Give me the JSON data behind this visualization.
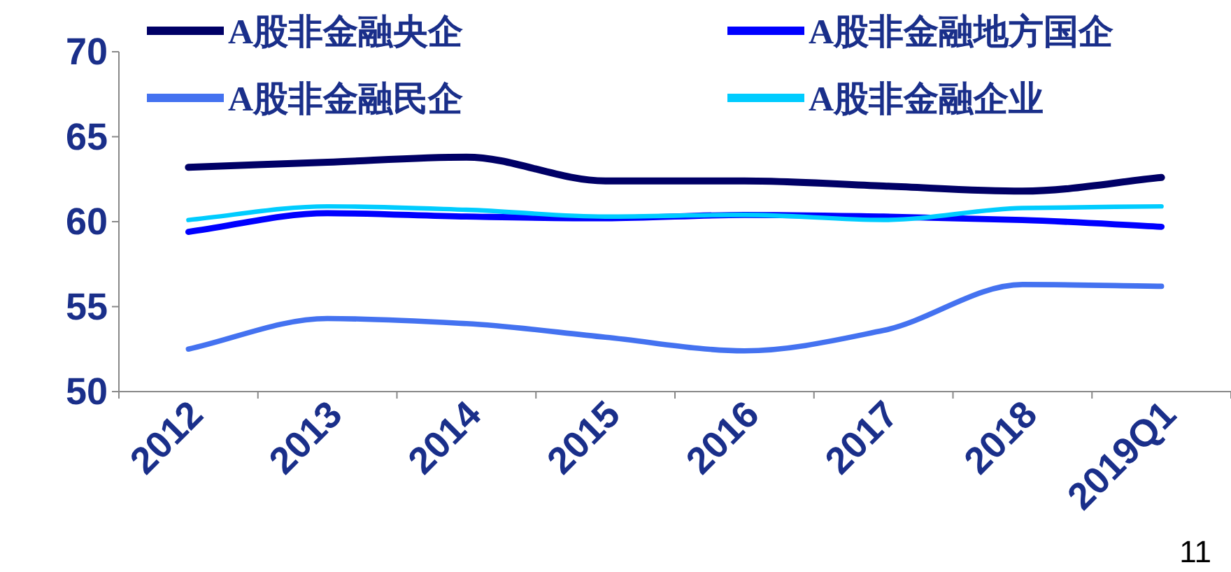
{
  "chart_data": {
    "type": "line",
    "categories": [
      "2012",
      "2013",
      "2014",
      "2015",
      "2016",
      "2017",
      "2018",
      "2019Q1"
    ],
    "series": [
      {
        "name": "A股非金融央企",
        "color": "#000066",
        "values": [
          63.2,
          63.5,
          63.8,
          62.4,
          62.4,
          62.1,
          61.8,
          62.6
        ]
      },
      {
        "name": "A股非金融地方国企",
        "color": "#0000ff",
        "values": [
          59.4,
          60.5,
          60.3,
          60.2,
          60.4,
          60.3,
          60.1,
          59.7
        ]
      },
      {
        "name": "A股非金融民企",
        "color": "#4472f0",
        "values": [
          52.5,
          54.3,
          54.0,
          53.2,
          52.4,
          53.6,
          56.3,
          56.2
        ]
      },
      {
        "name": "A股非金融企业",
        "color": "#00ccff",
        "values": [
          60.1,
          60.9,
          60.7,
          60.3,
          60.4,
          60.1,
          60.8,
          60.9
        ]
      }
    ],
    "ylim": [
      50,
      70
    ],
    "yticks": [
      50,
      55,
      60,
      65,
      70
    ],
    "grid": false,
    "legend": "top",
    "marker": "none",
    "line_style": "solid",
    "annotations": [
      "11"
    ]
  }
}
